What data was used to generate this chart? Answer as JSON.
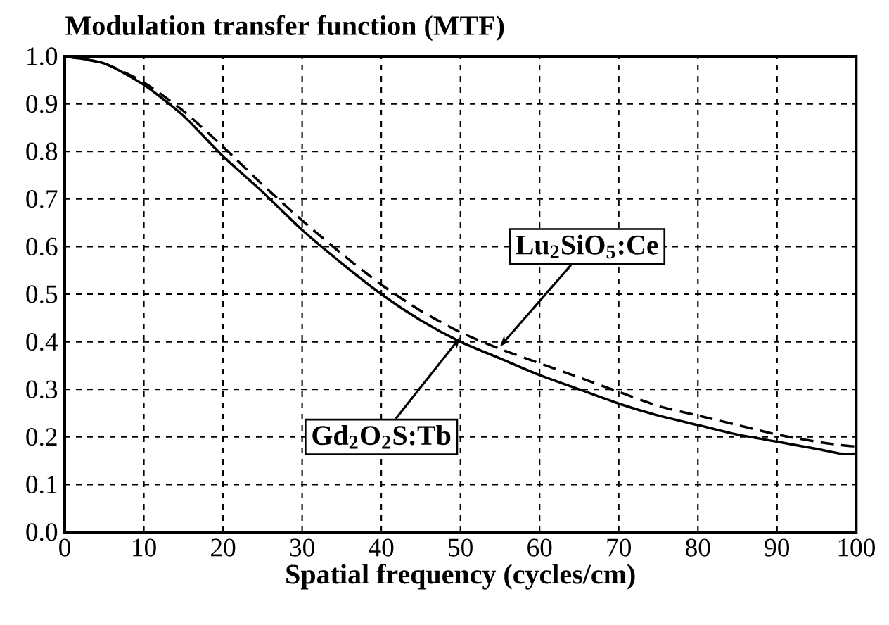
{
  "chart_data": {
    "type": "line",
    "title": "Modulation transfer function (MTF)",
    "xlabel": "Spatial frequency (cycles/cm)",
    "xlim": [
      0,
      100
    ],
    "xticks": [
      0,
      10,
      20,
      30,
      40,
      50,
      60,
      70,
      80,
      90,
      100
    ],
    "ylim": [
      0,
      1
    ],
    "yticks": [
      {
        "value": 0,
        "label": "0.0"
      },
      {
        "value": 0.1,
        "label": "0.1"
      },
      {
        "value": 0.2,
        "label": "0.2"
      },
      {
        "value": 0.3,
        "label": "0.3"
      },
      {
        "value": 0.4,
        "label": "0.4"
      },
      {
        "value": 0.5,
        "label": "0.5"
      },
      {
        "value": 0.6,
        "label": "0.6"
      },
      {
        "value": 0.7,
        "label": "0.7"
      },
      {
        "value": 0.8,
        "label": "0.8"
      },
      {
        "value": 0.9,
        "label": "0.9"
      },
      {
        "value": 1,
        "label": "1.0"
      }
    ],
    "grid": true,
    "marker": "none",
    "x": [
      0,
      5,
      10,
      15,
      20,
      25,
      30,
      35,
      40,
      45,
      50,
      55,
      60,
      65,
      70,
      75,
      80,
      85,
      90,
      95,
      98,
      100
    ],
    "series": [
      {
        "color": "#000000",
        "line_style": "solid",
        "values": [
          1.0,
          0.985,
          0.94,
          0.875,
          0.79,
          0.715,
          0.635,
          0.565,
          0.5,
          0.445,
          0.4,
          0.365,
          0.33,
          0.3,
          0.27,
          0.245,
          0.225,
          0.205,
          0.19,
          0.175,
          0.165,
          0.165
        ]
      },
      {
        "color": "#000000",
        "line_style": "dashed",
        "values": [
          1.0,
          0.985,
          0.945,
          0.885,
          0.81,
          0.73,
          0.655,
          0.585,
          0.52,
          0.465,
          0.42,
          0.385,
          0.355,
          0.325,
          0.295,
          0.265,
          0.245,
          0.225,
          0.205,
          0.19,
          0.183,
          0.18
        ]
      }
    ],
    "annotations": [
      {
        "text": "Gd$_{2}$O$_{2}$S:Tb",
        "x": 50,
        "y": 0.41
      },
      {
        "text": "Lu$_{2}$SiO$_{5}$:Ce",
        "x": 55,
        "y": 0.39
      }
    ]
  }
}
